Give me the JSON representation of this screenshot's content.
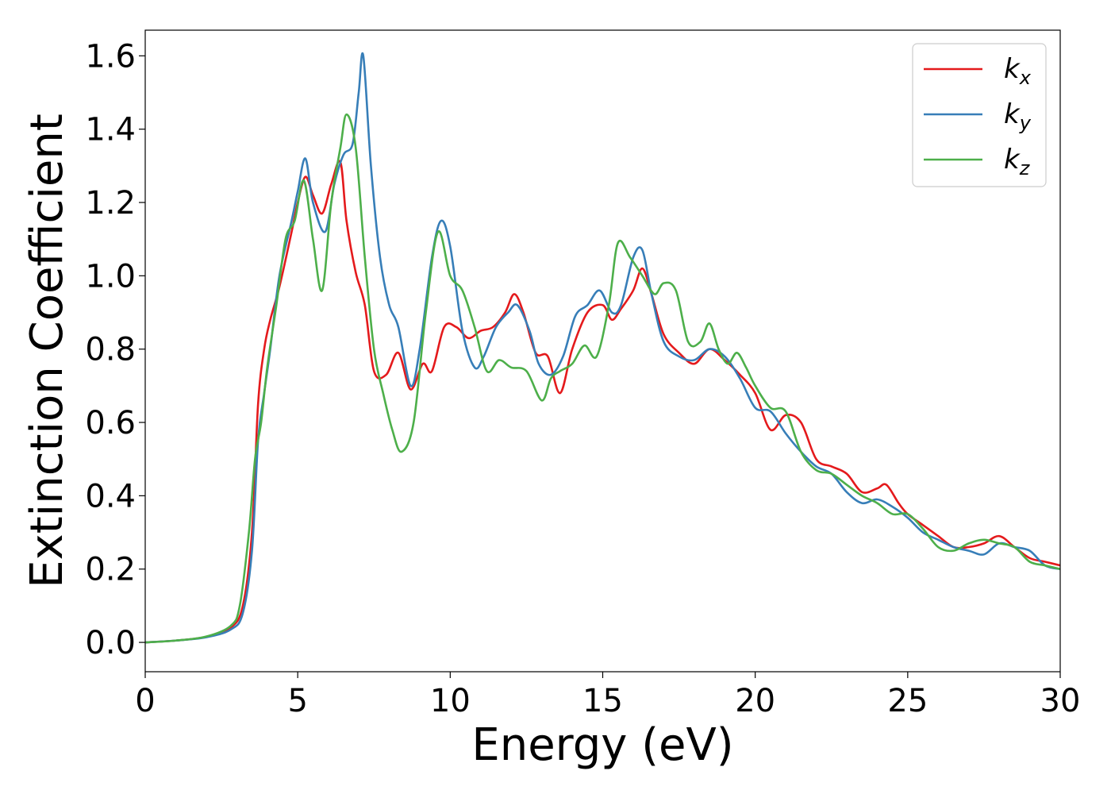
{
  "chart_data": {
    "type": "line",
    "title": "",
    "xlabel": "Energy (eV)",
    "ylabel": "Extinction Coefficient",
    "xlim": [
      0,
      30
    ],
    "ylim": [
      -0.08,
      1.67
    ],
    "xticks": [
      0,
      5,
      10,
      15,
      20,
      25,
      30
    ],
    "xtick_labels": [
      "0",
      "5",
      "10",
      "15",
      "20",
      "25",
      "30"
    ],
    "yticks": [
      0.0,
      0.2,
      0.4,
      0.6,
      0.8,
      1.0,
      1.2,
      1.4,
      1.6
    ],
    "ytick_labels": [
      "0.0",
      "0.2",
      "0.4",
      "0.6",
      "0.8",
      "1.0",
      "1.2",
      "1.4",
      "1.6"
    ],
    "grid": false,
    "legend_position": "top-right",
    "series": [
      {
        "name": "k",
        "subscript": "x",
        "color": "#e41a1c",
        "x": [
          0,
          1,
          2,
          2.8,
          3.2,
          3.5,
          3.7,
          3.9,
          4.1,
          4.4,
          4.8,
          5.0,
          5.25,
          5.5,
          5.8,
          6.1,
          6.4,
          6.6,
          6.9,
          7.2,
          7.5,
          7.9,
          8.3,
          8.7,
          9.1,
          9.4,
          9.8,
          10.2,
          10.6,
          11.0,
          11.4,
          11.8,
          12.1,
          12.4,
          12.8,
          13.2,
          13.6,
          14.0,
          14.5,
          15.0,
          15.3,
          15.6,
          16.0,
          16.3,
          16.6,
          17.0,
          17.5,
          18.0,
          18.5,
          19.0,
          19.5,
          20.0,
          20.5,
          21.0,
          21.5,
          22.0,
          22.5,
          23.0,
          23.5,
          24.0,
          24.3,
          24.7,
          25.0,
          25.5,
          26.0,
          26.5,
          27.0,
          27.5,
          28.0,
          28.5,
          29.0,
          29.5,
          30.0
        ],
        "y": [
          0.0,
          0.005,
          0.015,
          0.04,
          0.1,
          0.3,
          0.65,
          0.8,
          0.88,
          0.97,
          1.12,
          1.2,
          1.27,
          1.22,
          1.17,
          1.25,
          1.31,
          1.15,
          1.01,
          0.92,
          0.74,
          0.73,
          0.79,
          0.69,
          0.76,
          0.74,
          0.86,
          0.86,
          0.83,
          0.85,
          0.86,
          0.9,
          0.95,
          0.9,
          0.79,
          0.78,
          0.68,
          0.8,
          0.9,
          0.92,
          0.88,
          0.91,
          0.96,
          1.02,
          0.95,
          0.84,
          0.79,
          0.76,
          0.8,
          0.77,
          0.73,
          0.68,
          0.58,
          0.62,
          0.6,
          0.5,
          0.48,
          0.46,
          0.41,
          0.42,
          0.43,
          0.38,
          0.35,
          0.32,
          0.29,
          0.26,
          0.26,
          0.27,
          0.29,
          0.26,
          0.23,
          0.22,
          0.21
        ]
      },
      {
        "name": "k",
        "subscript": "y",
        "color": "#377eb8",
        "x": [
          0,
          1,
          2,
          2.8,
          3.2,
          3.5,
          3.7,
          3.9,
          4.1,
          4.4,
          4.8,
          5.0,
          5.25,
          5.5,
          5.9,
          6.2,
          6.5,
          6.8,
          7.0,
          7.15,
          7.4,
          7.7,
          8.0,
          8.3,
          8.7,
          9.0,
          9.4,
          9.7,
          10.0,
          10.4,
          10.8,
          11.1,
          11.5,
          11.9,
          12.2,
          12.6,
          12.9,
          13.3,
          13.7,
          14.1,
          14.5,
          14.9,
          15.3,
          15.6,
          16.0,
          16.3,
          16.6,
          17.0,
          17.5,
          18.0,
          18.5,
          19.0,
          19.5,
          20.0,
          20.5,
          21.0,
          21.5,
          22.0,
          22.5,
          23.0,
          23.5,
          24.0,
          24.5,
          25.0,
          25.5,
          26.0,
          26.5,
          27.0,
          27.5,
          28.0,
          28.5,
          29.0,
          29.5,
          30.0
        ],
        "y": [
          0.0,
          0.005,
          0.014,
          0.035,
          0.08,
          0.25,
          0.55,
          0.68,
          0.8,
          1.0,
          1.15,
          1.23,
          1.32,
          1.2,
          1.12,
          1.25,
          1.33,
          1.36,
          1.5,
          1.6,
          1.3,
          1.05,
          0.92,
          0.86,
          0.7,
          0.8,
          1.05,
          1.15,
          1.08,
          0.85,
          0.75,
          0.78,
          0.86,
          0.9,
          0.92,
          0.85,
          0.76,
          0.73,
          0.78,
          0.89,
          0.92,
          0.96,
          0.9,
          0.92,
          1.05,
          1.07,
          0.95,
          0.82,
          0.78,
          0.77,
          0.8,
          0.78,
          0.72,
          0.64,
          0.63,
          0.57,
          0.52,
          0.48,
          0.46,
          0.41,
          0.38,
          0.39,
          0.37,
          0.34,
          0.3,
          0.28,
          0.26,
          0.25,
          0.24,
          0.27,
          0.26,
          0.25,
          0.21,
          0.2
        ]
      },
      {
        "name": "k",
        "subscript": "z",
        "color": "#4daf4a",
        "x": [
          0,
          1,
          2,
          2.8,
          3.1,
          3.4,
          3.6,
          3.8,
          4.0,
          4.3,
          4.6,
          4.9,
          5.2,
          5.5,
          5.8,
          6.1,
          6.4,
          6.6,
          6.9,
          7.2,
          7.5,
          7.8,
          8.1,
          8.4,
          8.8,
          9.2,
          9.6,
          10.0,
          10.4,
          10.8,
          11.2,
          11.6,
          12.0,
          12.5,
          13.0,
          13.3,
          13.6,
          14.0,
          14.4,
          14.8,
          15.2,
          15.5,
          15.9,
          16.3,
          16.7,
          17.0,
          17.4,
          17.8,
          18.2,
          18.5,
          18.8,
          19.1,
          19.4,
          19.7,
          20.0,
          20.5,
          21.0,
          21.5,
          22.0,
          22.5,
          23.0,
          23.5,
          24.0,
          24.5,
          25.0,
          25.5,
          26.0,
          26.5,
          27.0,
          27.5,
          28.0,
          28.5,
          29.0,
          29.5,
          30.0
        ],
        "y": [
          0.0,
          0.005,
          0.016,
          0.045,
          0.1,
          0.3,
          0.5,
          0.6,
          0.75,
          0.92,
          1.1,
          1.15,
          1.26,
          1.1,
          0.96,
          1.2,
          1.35,
          1.44,
          1.35,
          1.05,
          0.8,
          0.68,
          0.58,
          0.52,
          0.6,
          0.9,
          1.12,
          1.0,
          0.96,
          0.86,
          0.74,
          0.77,
          0.75,
          0.74,
          0.66,
          0.72,
          0.74,
          0.76,
          0.81,
          0.78,
          0.92,
          1.09,
          1.05,
          1.0,
          0.95,
          0.98,
          0.96,
          0.82,
          0.82,
          0.87,
          0.8,
          0.76,
          0.79,
          0.75,
          0.7,
          0.64,
          0.63,
          0.52,
          0.47,
          0.46,
          0.43,
          0.4,
          0.38,
          0.35,
          0.35,
          0.31,
          0.26,
          0.25,
          0.27,
          0.28,
          0.27,
          0.26,
          0.22,
          0.21,
          0.2
        ]
      }
    ]
  }
}
